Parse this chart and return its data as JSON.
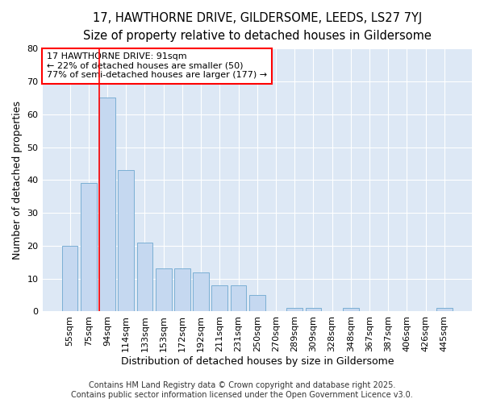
{
  "title_line1": "17, HAWTHORNE DRIVE, GILDERSOME, LEEDS, LS27 7YJ",
  "title_line2": "Size of property relative to detached houses in Gildersome",
  "xlabel": "Distribution of detached houses by size in Gildersome",
  "ylabel": "Number of detached properties",
  "categories": [
    "55sqm",
    "75sqm",
    "94sqm",
    "114sqm",
    "133sqm",
    "153sqm",
    "172sqm",
    "192sqm",
    "211sqm",
    "231sqm",
    "250sqm",
    "270sqm",
    "289sqm",
    "309sqm",
    "328sqm",
    "348sqm",
    "367sqm",
    "387sqm",
    "406sqm",
    "426sqm",
    "445sqm"
  ],
  "values": [
    20,
    39,
    65,
    43,
    21,
    13,
    13,
    12,
    8,
    8,
    5,
    0,
    1,
    1,
    0,
    1,
    0,
    0,
    0,
    0,
    1
  ],
  "bar_color": "#c5d8f0",
  "bar_edge_color": "#7bafd4",
  "vline_label": "17 HAWTHORNE DRIVE: 91sqm",
  "annotation_line2": "← 22% of detached houses are smaller (50)",
  "annotation_line3": "77% of semi-detached houses are larger (177) →",
  "ylim": [
    0,
    80
  ],
  "yticks": [
    0,
    10,
    20,
    30,
    40,
    50,
    60,
    70,
    80
  ],
  "background_color": "#dde8f5",
  "grid_color": "#ffffff",
  "footer_line1": "Contains HM Land Registry data © Crown copyright and database right 2025.",
  "footer_line2": "Contains public sector information licensed under the Open Government Licence v3.0.",
  "title_fontsize": 10.5,
  "subtitle_fontsize": 9.5,
  "axis_label_fontsize": 9,
  "tick_fontsize": 8,
  "annotation_fontsize": 8,
  "footer_fontsize": 7
}
